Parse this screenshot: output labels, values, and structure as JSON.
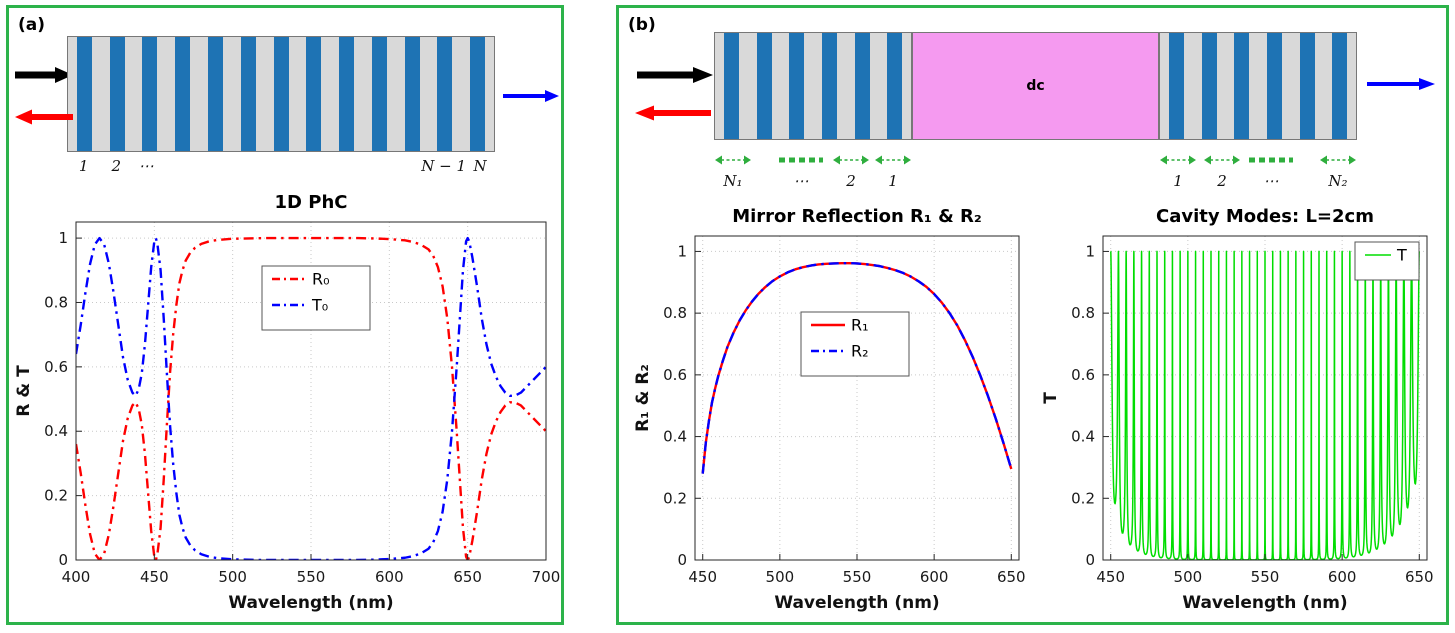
{
  "colors": {
    "panel_border": "#2cb34a",
    "schematic_green": "#2fae3e",
    "layer_blue": "#1e73b4",
    "layer_gray": "#d9d9d9",
    "cavity_pink": "#f59af0",
    "series_red": "#ff0000",
    "series_blue": "#0000ff",
    "series_green": "#00dd00"
  },
  "panel_a": {
    "label": "(a)",
    "schematic": {
      "num_layers": 13,
      "layer_labels": [
        "1",
        "2",
        "⋯",
        "N − 1",
        "N"
      ]
    }
  },
  "panel_b": {
    "label": "(b)",
    "schematic": {
      "left_mirror_layers": 6,
      "right_mirror_layers": 6,
      "cavity_label": "dc",
      "left_labels": [
        "N₁",
        "⋯",
        "2",
        "1"
      ],
      "right_labels": [
        "1",
        "2",
        "⋯",
        "N₂"
      ]
    }
  },
  "chart_data": [
    {
      "id": "chart-a",
      "type": "line",
      "title": "1D PhC",
      "xlabel": "Wavelength (nm)",
      "ylabel": "R & T",
      "xlim": [
        400,
        700
      ],
      "ylim": [
        0,
        1.05
      ],
      "xticks": [
        400,
        450,
        500,
        550,
        600,
        650,
        700
      ],
      "yticks": [
        0,
        0.2,
        0.4,
        0.6,
        0.8,
        1
      ],
      "grid": true,
      "legend_position": "upper-center",
      "series": [
        {
          "name": "R₀",
          "color": "#ff0000",
          "style": "dashdot",
          "linewidth": 2.4,
          "points": [
            [
              400,
              0.36
            ],
            [
              403,
              0.27
            ],
            [
              406,
              0.17
            ],
            [
              409,
              0.08
            ],
            [
              412,
              0.02
            ],
            [
              415,
              0
            ],
            [
              418,
              0.02
            ],
            [
              421,
              0.08
            ],
            [
              424,
              0.17
            ],
            [
              427,
              0.27
            ],
            [
              430,
              0.37
            ],
            [
              433,
              0.44
            ],
            [
              436,
              0.48
            ],
            [
              438,
              0.49
            ],
            [
              440,
              0.47
            ],
            [
              442,
              0.42
            ],
            [
              444,
              0.33
            ],
            [
              446,
              0.21
            ],
            [
              448,
              0.09
            ],
            [
              450,
              0.01
            ],
            [
              451,
              0
            ],
            [
              452,
              0.02
            ],
            [
              454,
              0.1
            ],
            [
              456,
              0.25
            ],
            [
              458,
              0.42
            ],
            [
              460,
              0.58
            ],
            [
              462,
              0.7
            ],
            [
              464,
              0.79
            ],
            [
              466,
              0.86
            ],
            [
              468,
              0.9
            ],
            [
              470,
              0.93
            ],
            [
              473,
              0.955
            ],
            [
              476,
              0.97
            ],
            [
              480,
              0.982
            ],
            [
              485,
              0.99
            ],
            [
              490,
              0.994
            ],
            [
              500,
              0.998
            ],
            [
              510,
              0.999
            ],
            [
              520,
              1
            ],
            [
              540,
              1
            ],
            [
              560,
              1
            ],
            [
              580,
              1
            ],
            [
              590,
              0.999
            ],
            [
              600,
              0.997
            ],
            [
              610,
              0.993
            ],
            [
              615,
              0.988
            ],
            [
              620,
              0.98
            ],
            [
              625,
              0.965
            ],
            [
              628,
              0.945
            ],
            [
              631,
              0.91
            ],
            [
              634,
              0.85
            ],
            [
              637,
              0.75
            ],
            [
              640,
              0.6
            ],
            [
              643,
              0.4
            ],
            [
              645,
              0.25
            ],
            [
              647,
              0.1
            ],
            [
              649,
              0.01
            ],
            [
              650,
              0
            ],
            [
              651,
              0.01
            ],
            [
              653,
              0.06
            ],
            [
              656,
              0.15
            ],
            [
              659,
              0.25
            ],
            [
              662,
              0.33
            ],
            [
              665,
              0.39
            ],
            [
              668,
              0.43
            ],
            [
              671,
              0.46
            ],
            [
              674,
              0.48
            ],
            [
              677,
              0.49
            ],
            [
              680,
              0.49
            ],
            [
              684,
              0.48
            ],
            [
              688,
              0.46
            ],
            [
              692,
              0.44
            ],
            [
              696,
              0.42
            ],
            [
              700,
              0.4
            ]
          ]
        },
        {
          "name": "T₀",
          "color": "#0000ff",
          "style": "dashdot",
          "linewidth": 2.4,
          "complement_of": "R₀",
          "relation": "T₀ = 1 − R₀"
        }
      ]
    },
    {
      "id": "chart-b1",
      "type": "line",
      "title": "Mirror Reflection R₁ & R₂",
      "xlabel": "Wavelength (nm)",
      "ylabel": "R₁ & R₂",
      "xlim": [
        445,
        655
      ],
      "ylim": [
        0,
        1.05
      ],
      "xticks": [
        450,
        500,
        550,
        600,
        650
      ],
      "yticks": [
        0,
        0.2,
        0.4,
        0.6,
        0.8,
        1
      ],
      "grid": true,
      "legend_position": "center",
      "series": [
        {
          "name": "R₁",
          "color": "#ff0000",
          "style": "solid",
          "linewidth": 2.4,
          "points": [
            [
              450,
              0.28
            ],
            [
              452,
              0.38
            ],
            [
              454,
              0.45
            ],
            [
              456,
              0.51
            ],
            [
              458,
              0.555
            ],
            [
              460,
              0.595
            ],
            [
              463,
              0.645
            ],
            [
              466,
              0.69
            ],
            [
              470,
              0.737
            ],
            [
              474,
              0.777
            ],
            [
              478,
              0.81
            ],
            [
              482,
              0.838
            ],
            [
              486,
              0.862
            ],
            [
              490,
              0.882
            ],
            [
              495,
              0.903
            ],
            [
              500,
              0.919
            ],
            [
              505,
              0.932
            ],
            [
              510,
              0.942
            ],
            [
              515,
              0.949
            ],
            [
              520,
              0.954
            ],
            [
              525,
              0.958
            ],
            [
              530,
              0.96
            ],
            [
              535,
              0.961
            ],
            [
              540,
              0.962
            ],
            [
              545,
              0.962
            ],
            [
              550,
              0.961
            ],
            [
              555,
              0.959
            ],
            [
              560,
              0.956
            ],
            [
              565,
              0.952
            ],
            [
              570,
              0.946
            ],
            [
              575,
              0.939
            ],
            [
              580,
              0.93
            ],
            [
              585,
              0.918
            ],
            [
              590,
              0.903
            ],
            [
              595,
              0.885
            ],
            [
              600,
              0.862
            ],
            [
              605,
              0.834
            ],
            [
              610,
              0.8
            ],
            [
              615,
              0.76
            ],
            [
              620,
              0.712
            ],
            [
              625,
              0.658
            ],
            [
              630,
              0.597
            ],
            [
              635,
              0.53
            ],
            [
              640,
              0.457
            ],
            [
              645,
              0.378
            ],
            [
              650,
              0.295
            ]
          ]
        },
        {
          "name": "R₂",
          "color": "#0000ff",
          "style": "dashdot",
          "linewidth": 2.4,
          "same_as": "R₁",
          "relation": "R₂ = R₁ (curves overlap)"
        }
      ]
    },
    {
      "id": "chart-b2",
      "type": "line",
      "title": "Cavity Modes: L=2cm",
      "xlabel": "Wavelength (nm)",
      "ylabel": "T",
      "xlim": [
        445,
        655
      ],
      "ylim": [
        0,
        1.05
      ],
      "xticks": [
        450,
        500,
        550,
        600,
        650
      ],
      "yticks": [
        0,
        0.2,
        0.4,
        0.6,
        0.8,
        1
      ],
      "grid": true,
      "legend_position": "upper-right",
      "series": [
        {
          "name": "T",
          "color": "#00dd00",
          "style": "solid",
          "linewidth": 1.5,
          "generator": {
            "model": "fabry_perot_airy",
            "formula": "T = 1 / (1 + F·sin²φ), F = 4R/(1−R)²",
            "num_modes": 40,
            "wavelength_range": [
              450,
              650
            ],
            "mirror_chart": "chart-b1",
            "mirror_series": "R₁",
            "peak_transmission": 1
          }
        }
      ]
    }
  ]
}
